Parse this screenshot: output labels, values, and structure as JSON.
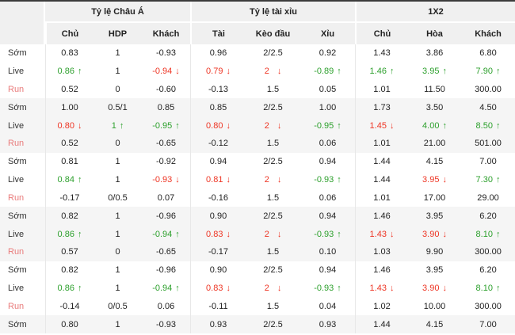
{
  "colors": {
    "up_green": "#2da02d",
    "down_red": "#ee3524",
    "run_label": "#e97b7b",
    "header_bg": "#f0f0f0",
    "band_bg": "#f5f5f5",
    "top_border": "#3b3b3b"
  },
  "header": {
    "sections": [
      {
        "title": "Tỷ lệ Châu Á"
      },
      {
        "title": "Tỷ lệ tài xỉu"
      },
      {
        "title": "1X2"
      }
    ],
    "columns": [
      "Chủ",
      "HDP",
      "Khách",
      "Tài",
      "Kèo đầu",
      "Xỉu",
      "Chủ",
      "Hòa",
      "Khách"
    ]
  },
  "table": {
    "rows": [
      {
        "label": "Sớm",
        "run": false,
        "cells": [
          {
            "v": "0.83"
          },
          {
            "v": "1"
          },
          {
            "v": "-0.93"
          },
          {
            "v": "0.96"
          },
          {
            "v": "2/2.5"
          },
          {
            "v": "0.92"
          },
          {
            "v": "1.43"
          },
          {
            "v": "3.86"
          },
          {
            "v": "6.80"
          }
        ]
      },
      {
        "label": "Live",
        "run": false,
        "cells": [
          {
            "v": "0.86",
            "c": "green",
            "a": "up"
          },
          {
            "v": "1"
          },
          {
            "v": "-0.94",
            "c": "red",
            "a": "down"
          },
          {
            "v": "0.79",
            "c": "red",
            "a": "down"
          },
          {
            "v": "2",
            "c": "red",
            "a": "down"
          },
          {
            "v": "-0.89",
            "c": "green",
            "a": "up"
          },
          {
            "v": "1.46",
            "c": "green",
            "a": "up"
          },
          {
            "v": "3.95",
            "c": "green",
            "a": "up"
          },
          {
            "v": "7.90",
            "c": "green",
            "a": "up"
          }
        ]
      },
      {
        "label": "Run",
        "run": true,
        "cells": [
          {
            "v": "0.52"
          },
          {
            "v": "0"
          },
          {
            "v": "-0.60"
          },
          {
            "v": "-0.13"
          },
          {
            "v": "1.5"
          },
          {
            "v": "0.05"
          },
          {
            "v": "1.01"
          },
          {
            "v": "11.50"
          },
          {
            "v": "300.00"
          }
        ]
      },
      {
        "label": "Sớm",
        "run": false,
        "cells": [
          {
            "v": "1.00"
          },
          {
            "v": "0.5/1"
          },
          {
            "v": "0.85"
          },
          {
            "v": "0.85"
          },
          {
            "v": "2/2.5"
          },
          {
            "v": "1.00"
          },
          {
            "v": "1.73"
          },
          {
            "v": "3.50"
          },
          {
            "v": "4.50"
          }
        ]
      },
      {
        "label": "Live",
        "run": false,
        "cells": [
          {
            "v": "0.80",
            "c": "red",
            "a": "down"
          },
          {
            "v": "1",
            "c": "green",
            "a": "up"
          },
          {
            "v": "-0.95",
            "c": "green",
            "a": "up"
          },
          {
            "v": "0.80",
            "c": "red",
            "a": "down"
          },
          {
            "v": "2",
            "c": "red",
            "a": "down"
          },
          {
            "v": "-0.95",
            "c": "green",
            "a": "up"
          },
          {
            "v": "1.45",
            "c": "red",
            "a": "down"
          },
          {
            "v": "4.00",
            "c": "green",
            "a": "up"
          },
          {
            "v": "8.50",
            "c": "green",
            "a": "up"
          }
        ]
      },
      {
        "label": "Run",
        "run": true,
        "cells": [
          {
            "v": "0.52"
          },
          {
            "v": "0"
          },
          {
            "v": "-0.65"
          },
          {
            "v": "-0.12"
          },
          {
            "v": "1.5"
          },
          {
            "v": "0.06"
          },
          {
            "v": "1.01"
          },
          {
            "v": "21.00"
          },
          {
            "v": "501.00"
          }
        ]
      },
      {
        "label": "Sớm",
        "run": false,
        "cells": [
          {
            "v": "0.81"
          },
          {
            "v": "1"
          },
          {
            "v": "-0.92"
          },
          {
            "v": "0.94"
          },
          {
            "v": "2/2.5"
          },
          {
            "v": "0.94"
          },
          {
            "v": "1.44"
          },
          {
            "v": "4.15"
          },
          {
            "v": "7.00"
          }
        ]
      },
      {
        "label": "Live",
        "run": false,
        "cells": [
          {
            "v": "0.84",
            "c": "green",
            "a": "up"
          },
          {
            "v": "1"
          },
          {
            "v": "-0.93",
            "c": "red",
            "a": "down"
          },
          {
            "v": "0.81",
            "c": "red",
            "a": "down"
          },
          {
            "v": "2",
            "c": "red",
            "a": "down"
          },
          {
            "v": "-0.93",
            "c": "green",
            "a": "up"
          },
          {
            "v": "1.44"
          },
          {
            "v": "3.95",
            "c": "red",
            "a": "down"
          },
          {
            "v": "7.30",
            "c": "green",
            "a": "up"
          }
        ]
      },
      {
        "label": "Run",
        "run": true,
        "cells": [
          {
            "v": "-0.17"
          },
          {
            "v": "0/0.5"
          },
          {
            "v": "0.07"
          },
          {
            "v": "-0.16"
          },
          {
            "v": "1.5"
          },
          {
            "v": "0.06"
          },
          {
            "v": "1.01"
          },
          {
            "v": "17.00"
          },
          {
            "v": "29.00"
          }
        ]
      },
      {
        "label": "Sớm",
        "run": false,
        "cells": [
          {
            "v": "0.82"
          },
          {
            "v": "1"
          },
          {
            "v": "-0.96"
          },
          {
            "v": "0.90"
          },
          {
            "v": "2/2.5"
          },
          {
            "v": "0.94"
          },
          {
            "v": "1.46"
          },
          {
            "v": "3.95"
          },
          {
            "v": "6.20"
          }
        ]
      },
      {
        "label": "Live",
        "run": false,
        "cells": [
          {
            "v": "0.86",
            "c": "green",
            "a": "up"
          },
          {
            "v": "1"
          },
          {
            "v": "-0.94",
            "c": "green",
            "a": "up"
          },
          {
            "v": "0.83",
            "c": "red",
            "a": "down"
          },
          {
            "v": "2",
            "c": "red",
            "a": "down"
          },
          {
            "v": "-0.93",
            "c": "green",
            "a": "up"
          },
          {
            "v": "1.43",
            "c": "red",
            "a": "down"
          },
          {
            "v": "3.90",
            "c": "red",
            "a": "down"
          },
          {
            "v": "8.10",
            "c": "green",
            "a": "up"
          }
        ]
      },
      {
        "label": "Run",
        "run": true,
        "cells": [
          {
            "v": "0.57"
          },
          {
            "v": "0"
          },
          {
            "v": "-0.65"
          },
          {
            "v": "-0.17"
          },
          {
            "v": "1.5"
          },
          {
            "v": "0.10"
          },
          {
            "v": "1.03"
          },
          {
            "v": "9.90"
          },
          {
            "v": "300.00"
          }
        ]
      },
      {
        "label": "Sớm",
        "run": false,
        "cells": [
          {
            "v": "0.82"
          },
          {
            "v": "1"
          },
          {
            "v": "-0.96"
          },
          {
            "v": "0.90"
          },
          {
            "v": "2/2.5"
          },
          {
            "v": "0.94"
          },
          {
            "v": "1.46"
          },
          {
            "v": "3.95"
          },
          {
            "v": "6.20"
          }
        ]
      },
      {
        "label": "Live",
        "run": false,
        "cells": [
          {
            "v": "0.86",
            "c": "green",
            "a": "up"
          },
          {
            "v": "1"
          },
          {
            "v": "-0.94",
            "c": "green",
            "a": "up"
          },
          {
            "v": "0.83",
            "c": "red",
            "a": "down"
          },
          {
            "v": "2",
            "c": "red",
            "a": "down"
          },
          {
            "v": "-0.93",
            "c": "green",
            "a": "up"
          },
          {
            "v": "1.43",
            "c": "red",
            "a": "down"
          },
          {
            "v": "3.90",
            "c": "red",
            "a": "down"
          },
          {
            "v": "8.10",
            "c": "green",
            "a": "up"
          }
        ]
      },
      {
        "label": "Run",
        "run": true,
        "cells": [
          {
            "v": "-0.14"
          },
          {
            "v": "0/0.5"
          },
          {
            "v": "0.06"
          },
          {
            "v": "-0.11"
          },
          {
            "v": "1.5"
          },
          {
            "v": "0.04"
          },
          {
            "v": "1.02"
          },
          {
            "v": "10.00"
          },
          {
            "v": "300.00"
          }
        ]
      },
      {
        "label": "Sớm",
        "run": false,
        "cells": [
          {
            "v": "0.80"
          },
          {
            "v": "1"
          },
          {
            "v": "-0.93"
          },
          {
            "v": "0.93"
          },
          {
            "v": "2/2.5"
          },
          {
            "v": "0.93"
          },
          {
            "v": "1.44"
          },
          {
            "v": "4.15"
          },
          {
            "v": "7.00"
          }
        ]
      }
    ]
  }
}
